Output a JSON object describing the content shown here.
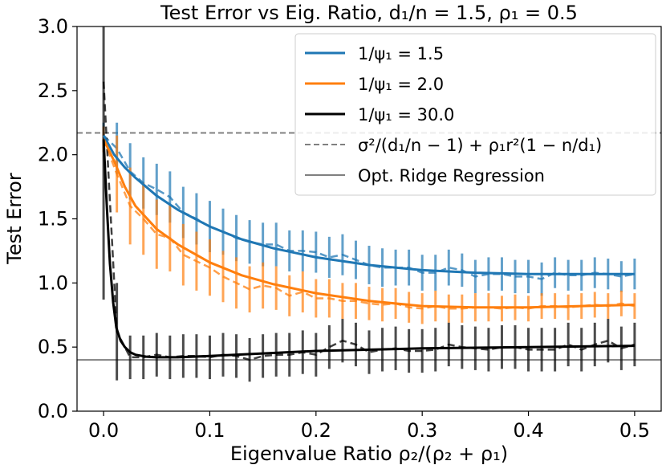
{
  "chart_data": {
    "type": "line",
    "title": "Test Error vs Eig. Ratio, d₁/n = 1.5, ρ₁ = 0.5",
    "xlabel": "Eigenvalue Ratio ρ₂/(ρ₂ + ρ₁)",
    "ylabel": "Test Error",
    "xlim": [
      -0.025,
      0.525
    ],
    "ylim": [
      0.0,
      3.0
    ],
    "xticks": [
      0.0,
      0.1,
      0.2,
      0.3,
      0.4,
      0.5
    ],
    "xtick_labels": [
      "0.0",
      "0.1",
      "0.2",
      "0.3",
      "0.4",
      "0.5"
    ],
    "yticks": [
      0.0,
      0.5,
      1.0,
      1.5,
      2.0,
      2.5,
      3.0
    ],
    "ytick_labels": [
      "0.0",
      "0.5",
      "1.0",
      "1.5",
      "2.0",
      "2.5",
      "3.0"
    ],
    "legend_position": "top-right",
    "series": [
      {
        "name": "1/ψ₁ = 1.5",
        "legend_label": "1/ψ₁ = 1.5",
        "color": "#1f77b4",
        "theory": {
          "x": [
            0.0,
            0.01,
            0.02,
            0.03,
            0.05,
            0.07,
            0.1,
            0.13,
            0.16,
            0.2,
            0.25,
            0.3,
            0.35,
            0.4,
            0.45,
            0.5
          ],
          "y": [
            2.15,
            2.0,
            1.9,
            1.82,
            1.68,
            1.57,
            1.44,
            1.34,
            1.27,
            1.2,
            1.14,
            1.1,
            1.08,
            1.07,
            1.07,
            1.07
          ]
        },
        "empirical": {
          "x": [
            0.0,
            0.0125,
            0.025,
            0.0375,
            0.05,
            0.0625,
            0.075,
            0.0875,
            0.1,
            0.1125,
            0.125,
            0.1375,
            0.15,
            0.1625,
            0.175,
            0.1875,
            0.2,
            0.2125,
            0.225,
            0.2375,
            0.25,
            0.2625,
            0.275,
            0.2875,
            0.3,
            0.3125,
            0.325,
            0.3375,
            0.35,
            0.3625,
            0.375,
            0.3875,
            0.4,
            0.4125,
            0.425,
            0.4375,
            0.45,
            0.4625,
            0.475,
            0.4875,
            0.5
          ],
          "y": [
            2.15,
            2.05,
            1.87,
            1.78,
            1.73,
            1.67,
            1.55,
            1.5,
            1.44,
            1.4,
            1.35,
            1.32,
            1.3,
            1.3,
            1.25,
            1.25,
            1.24,
            1.2,
            1.22,
            1.18,
            1.14,
            1.12,
            1.12,
            1.12,
            1.08,
            1.08,
            1.12,
            1.1,
            1.05,
            1.07,
            1.07,
            1.05,
            1.05,
            1.03,
            1.08,
            1.06,
            1.06,
            1.08,
            1.07,
            1.05,
            1.07
          ],
          "err": [
            0.1,
            0.2,
            0.22,
            0.2,
            0.2,
            0.2,
            0.2,
            0.2,
            0.2,
            0.18,
            0.18,
            0.17,
            0.17,
            0.17,
            0.16,
            0.16,
            0.16,
            0.16,
            0.16,
            0.15,
            0.15,
            0.15,
            0.14,
            0.14,
            0.14,
            0.14,
            0.14,
            0.13,
            0.13,
            0.13,
            0.13,
            0.13,
            0.13,
            0.13,
            0.12,
            0.12,
            0.12,
            0.12,
            0.12,
            0.12,
            0.12
          ]
        }
      },
      {
        "name": "1/ψ₁ = 2.0",
        "legend_label": "1/ψ₁ = 2.0",
        "color": "#ff7f0e",
        "theory": {
          "x": [
            0.0,
            0.01,
            0.02,
            0.03,
            0.05,
            0.07,
            0.1,
            0.13,
            0.16,
            0.2,
            0.25,
            0.3,
            0.35,
            0.4,
            0.45,
            0.5
          ],
          "y": [
            2.12,
            1.95,
            1.75,
            1.6,
            1.42,
            1.3,
            1.16,
            1.06,
            0.99,
            0.92,
            0.86,
            0.82,
            0.81,
            0.81,
            0.82,
            0.83
          ]
        },
        "empirical": {
          "x": [
            0.0,
            0.0125,
            0.025,
            0.0375,
            0.05,
            0.0625,
            0.075,
            0.0875,
            0.1,
            0.1125,
            0.125,
            0.1375,
            0.15,
            0.1625,
            0.175,
            0.1875,
            0.2,
            0.2125,
            0.225,
            0.2375,
            0.25,
            0.2625,
            0.275,
            0.2875,
            0.3,
            0.3125,
            0.325,
            0.3375,
            0.35,
            0.3625,
            0.375,
            0.3875,
            0.4,
            0.4125,
            0.425,
            0.4375,
            0.45,
            0.4625,
            0.475,
            0.4875,
            0.5
          ],
          "y": [
            2.12,
            1.85,
            1.6,
            1.5,
            1.38,
            1.35,
            1.22,
            1.17,
            1.12,
            1.05,
            1.0,
            0.95,
            0.98,
            0.96,
            0.9,
            0.93,
            0.88,
            0.88,
            0.86,
            0.86,
            0.84,
            0.83,
            0.84,
            0.81,
            0.8,
            0.82,
            0.8,
            0.8,
            0.81,
            0.81,
            0.8,
            0.81,
            0.8,
            0.82,
            0.82,
            0.81,
            0.82,
            0.83,
            0.82,
            0.84,
            0.82
          ],
          "err": [
            0.1,
            0.3,
            0.3,
            0.28,
            0.27,
            0.26,
            0.24,
            0.23,
            0.22,
            0.2,
            0.2,
            0.18,
            0.18,
            0.17,
            0.16,
            0.16,
            0.15,
            0.15,
            0.14,
            0.14,
            0.13,
            0.13,
            0.12,
            0.12,
            0.12,
            0.12,
            0.11,
            0.11,
            0.11,
            0.11,
            0.1,
            0.1,
            0.1,
            0.1,
            0.1,
            0.1,
            0.1,
            0.1,
            0.1,
            0.1,
            0.1
          ]
        }
      },
      {
        "name": "1/ψ₁ = 30.0",
        "legend_label": "1/ψ₁ = 30.0",
        "color": "#000000",
        "theory": {
          "x": [
            0.0,
            0.003,
            0.006,
            0.009,
            0.012,
            0.016,
            0.02,
            0.025,
            0.03,
            0.04,
            0.05,
            0.07,
            0.1,
            0.15,
            0.2,
            0.3,
            0.4,
            0.5
          ],
          "y": [
            2.12,
            1.6,
            1.15,
            0.85,
            0.65,
            0.55,
            0.5,
            0.46,
            0.44,
            0.425,
            0.42,
            0.42,
            0.43,
            0.45,
            0.47,
            0.49,
            0.5,
            0.51
          ]
        },
        "empirical": {
          "x": [
            0.0,
            0.0125,
            0.025,
            0.0375,
            0.05,
            0.0625,
            0.075,
            0.0875,
            0.1,
            0.1125,
            0.125,
            0.1375,
            0.15,
            0.1625,
            0.175,
            0.1875,
            0.2,
            0.2125,
            0.225,
            0.2375,
            0.25,
            0.2625,
            0.275,
            0.2875,
            0.3,
            0.3125,
            0.325,
            0.3375,
            0.35,
            0.3625,
            0.375,
            0.3875,
            0.4,
            0.4125,
            0.425,
            0.4375,
            0.45,
            0.4625,
            0.475,
            0.4875,
            0.5
          ],
          "y": [
            2.57,
            0.62,
            0.42,
            0.42,
            0.44,
            0.42,
            0.43,
            0.43,
            0.42,
            0.44,
            0.43,
            0.4,
            0.43,
            0.44,
            0.44,
            0.46,
            0.44,
            0.5,
            0.55,
            0.52,
            0.46,
            0.48,
            0.49,
            0.47,
            0.47,
            0.48,
            0.52,
            0.5,
            0.49,
            0.48,
            0.5,
            0.5,
            0.48,
            0.48,
            0.48,
            0.52,
            0.48,
            0.52,
            0.55,
            0.49,
            0.52
          ],
          "err": [
            1.7,
            0.38,
            0.17,
            0.17,
            0.17,
            0.17,
            0.17,
            0.17,
            0.17,
            0.17,
            0.17,
            0.17,
            0.17,
            0.17,
            0.17,
            0.17,
            0.17,
            0.17,
            0.17,
            0.17,
            0.17,
            0.17,
            0.17,
            0.17,
            0.17,
            0.17,
            0.17,
            0.17,
            0.17,
            0.17,
            0.17,
            0.17,
            0.17,
            0.17,
            0.17,
            0.17,
            0.17,
            0.17,
            0.17,
            0.17,
            0.17
          ]
        }
      }
    ],
    "reference_lines": [
      {
        "name": "σ²/(d₁/n − 1) + ρ₁r²(1 − n/d₁)",
        "legend_label": "σ²/(d₁/n − 1) + ρ₁r²(1 − n/d₁)",
        "y": 2.17,
        "style": "dashed",
        "color": "#808080"
      },
      {
        "name": "Opt. Ridge Regression",
        "legend_label": "Opt. Ridge Regression",
        "y": 0.4,
        "style": "solid",
        "color": "#808080"
      }
    ]
  }
}
